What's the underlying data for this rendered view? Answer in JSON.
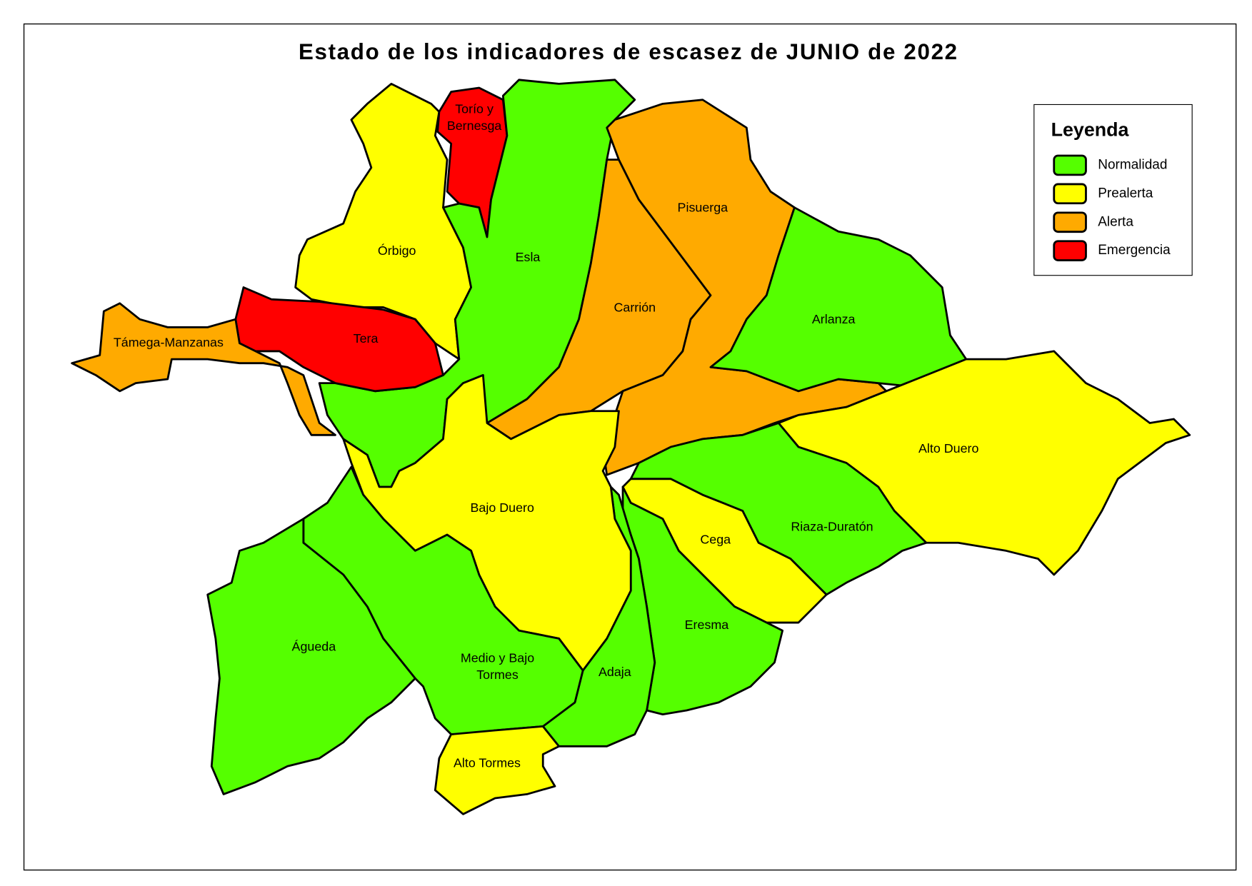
{
  "title": "Estado de los indicadores de escasez de JUNIO de 2022",
  "legend": {
    "title": "Leyenda",
    "items": [
      {
        "label": "Normalidad",
        "color": "#55ff00"
      },
      {
        "label": "Prealerta",
        "color": "#ffff00"
      },
      {
        "label": "Alerta",
        "color": "#ffaa00"
      },
      {
        "label": "Emergencia",
        "color": "#ff0000"
      }
    ]
  },
  "regions": [
    {
      "lines": [
        "Órbigo"
      ],
      "status": "Prealerta"
    },
    {
      "lines": [
        "Torío y",
        "Bernesga"
      ],
      "status": "Emergencia"
    },
    {
      "lines": [
        "Esla"
      ],
      "status": "Normalidad"
    },
    {
      "lines": [
        "Tera"
      ],
      "status": "Emergencia"
    },
    {
      "lines": [
        "Támega-Manzanas"
      ],
      "status": "Alerta"
    },
    {
      "lines": [
        "Carrión"
      ],
      "status": "Alerta"
    },
    {
      "lines": [
        "Pisuerga"
      ],
      "status": "Alerta"
    },
    {
      "lines": [
        "Arlanza"
      ],
      "status": "Normalidad"
    },
    {
      "lines": [
        "Alto Duero"
      ],
      "status": "Prealerta"
    },
    {
      "lines": [
        "Riaza-Duratón"
      ],
      "status": "Normalidad"
    },
    {
      "lines": [
        "Cega"
      ],
      "status": "Prealerta"
    },
    {
      "lines": [
        "Eresma"
      ],
      "status": "Normalidad"
    },
    {
      "lines": [
        "Adaja"
      ],
      "status": "Normalidad"
    },
    {
      "lines": [
        "Bajo Duero"
      ],
      "status": "Prealerta"
    },
    {
      "lines": [
        "Medio y Bajo",
        "Tormes"
      ],
      "status": "Normalidad"
    },
    {
      "lines": [
        "Águeda"
      ],
      "status": "Normalidad"
    },
    {
      "lines": [
        "Alto Tormes"
      ],
      "status": "Prealerta"
    }
  ]
}
